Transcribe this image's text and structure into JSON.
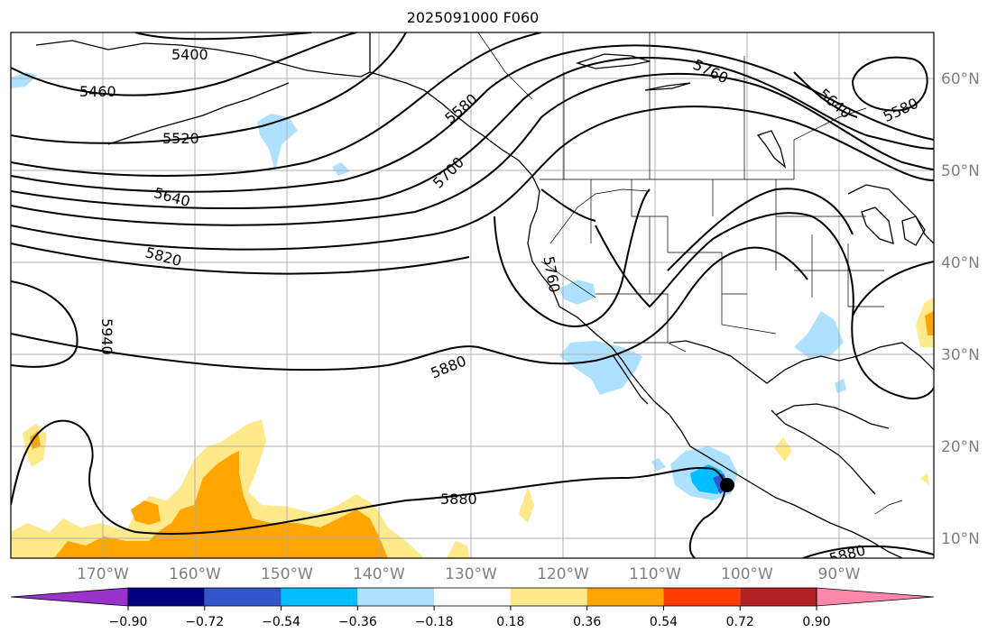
{
  "title": "2025091000 F060",
  "lon_labels": [
    "170°W",
    "160°W",
    "150°W",
    "140°W",
    "130°W",
    "120°W",
    "110°W",
    "100°W",
    "90°W"
  ],
  "lat_labels": [
    "60°N",
    "50°N",
    "40°N",
    "30°N",
    "20°N",
    "10°N"
  ],
  "contour_labels": [
    "5400",
    "5460",
    "5520",
    "5580",
    "5640",
    "5700",
    "5760",
    "5820",
    "5880",
    "5940"
  ],
  "colorbar": {
    "ticks": [
      "−0.90",
      "−0.72",
      "−0.54",
      "−0.36",
      "−0.18",
      "0.18",
      "0.36",
      "0.54",
      "0.72",
      "0.90"
    ],
    "colors": [
      "#9933cc",
      "#000080",
      "#3355cc",
      "#00bfff",
      "#aee0ff",
      "#ffffff",
      "#ffe98a",
      "#ffa500",
      "#ff3b00",
      "#b22222",
      "#ff88aa"
    ]
  }
}
